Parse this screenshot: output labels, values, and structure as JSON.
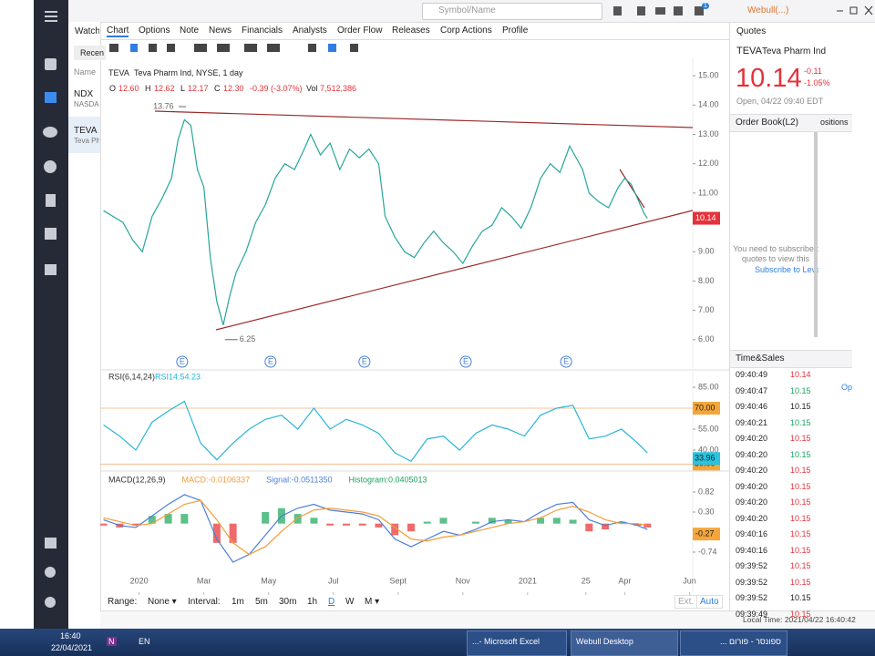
{
  "top_bar": {
    "search": "Symbol/Name",
    "account": "Webull(...)",
    "badge": "1"
  },
  "watchlist": {
    "tab": "Watchli",
    "filter": "Recen",
    "column": "Name",
    "items": [
      {
        "symbol": "NDX",
        "name": "NASDAQ"
      },
      {
        "symbol": "TEVA",
        "name": "Teva Ph"
      }
    ]
  },
  "tabs": [
    "Chart",
    "Options",
    "Note",
    "News",
    "Financials",
    "Analysts",
    "Order Flow",
    "Releases",
    "Corp Actions",
    "Profile"
  ],
  "legend": {
    "symbol": "TEVA",
    "description": "Teva Pharm Ind, NYSE, 1 day",
    "ohlc": [
      {
        "label": "O",
        "value": "12.60"
      },
      {
        "label": "H",
        "value": "12.62"
      },
      {
        "label": "L",
        "value": "12.17"
      },
      {
        "label": "C",
        "value": "12.30"
      }
    ],
    "change": "-0.39 (-3.07%)",
    "volume_label": "Vol",
    "volume": "7,512,386"
  },
  "price_chart": {
    "type": "line",
    "color": "#26a69a",
    "x": [
      -1.1,
      -0.8,
      -0.5,
      -0.2,
      0.1,
      0.4,
      0.7,
      1.0,
      1.2,
      1.4,
      1.6,
      1.8,
      2.0,
      2.2,
      2.4,
      2.6,
      2.8,
      3.0,
      3.3,
      3.6,
      3.9,
      4.2,
      4.5,
      4.8,
      5.1,
      5.3,
      5.6,
      5.9,
      6.2,
      6.5,
      6.8,
      7.1,
      7.4,
      7.6,
      7.9,
      8.2,
      8.5,
      8.8,
      9.1,
      9.4,
      9.7,
      10.0,
      10.3,
      10.6,
      10.9,
      11.2,
      11.5,
      11.8,
      12.1,
      12.4,
      12.7,
      13.0,
      13.3,
      13.5,
      13.7,
      13.9,
      14.2,
      14.5,
      14.8,
      15.0,
      15.2,
      15.4,
      15.6,
      15.7
    ],
    "values": [
      10.4,
      10.2,
      10.0,
      9.4,
      9.0,
      10.2,
      10.8,
      11.5,
      12.8,
      13.5,
      13.3,
      11.8,
      11.2,
      8.8,
      7.3,
      6.5,
      7.5,
      8.3,
      9.0,
      10.0,
      10.6,
      11.5,
      12.0,
      11.8,
      12.5,
      13.0,
      12.3,
      12.7,
      11.8,
      12.5,
      12.2,
      12.5,
      12.0,
      10.2,
      9.5,
      9.0,
      8.8,
      9.3,
      9.7,
      9.3,
      9.0,
      8.6,
      9.2,
      9.7,
      9.9,
      10.5,
      10.2,
      9.8,
      10.5,
      11.5,
      12.0,
      11.7,
      12.6,
      12.2,
      11.8,
      11.0,
      10.7,
      10.5,
      11.2,
      11.5,
      11.3,
      10.8,
      10.3,
      10.14
    ],
    "xlim": [
      -1.2,
      17.1
    ],
    "ylim": [
      5.0,
      15.47
    ],
    "xticks": [
      {
        "value": 0,
        "label": "2020"
      },
      {
        "value": 2,
        "label": "Mar"
      },
      {
        "value": 4,
        "label": "May"
      },
      {
        "value": 6,
        "label": "Jul"
      },
      {
        "value": 8,
        "label": "Sept"
      },
      {
        "value": 10,
        "label": "Nov"
      },
      {
        "value": 12,
        "label": "2021"
      },
      {
        "value": 13.8,
        "label": "25"
      },
      {
        "value": 15,
        "label": "Apr"
      },
      {
        "value": 17,
        "label": "Jun"
      }
    ],
    "yticks": [
      {
        "value": 15,
        "label": "15.00"
      },
      {
        "value": 14,
        "label": "14.00"
      },
      {
        "value": 13,
        "label": "13.00"
      },
      {
        "value": 12,
        "label": "12.00"
      },
      {
        "value": 11,
        "label": "11.00"
      },
      {
        "value": 10,
        "label": "10.00"
      },
      {
        "value": 9,
        "label": "9.00"
      },
      {
        "value": 8,
        "label": "8.00"
      },
      {
        "value": 7,
        "label": "7.00"
      },
      {
        "value": 6,
        "label": "6.00"
      }
    ],
    "last_price": 10.14,
    "high_marker": {
      "x": 1.45,
      "value": 13.76
    },
    "low_marker": {
      "x": 2.65,
      "value": 6.25
    },
    "events": [
      {
        "x": 1.33,
        "label": "E"
      },
      {
        "x": 4.06,
        "label": "E"
      },
      {
        "x": 6.96,
        "label": "E"
      },
      {
        "x": 10.09,
        "label": "E"
      },
      {
        "x": 13.19,
        "label": "E"
      }
    ]
  },
  "rsi": {
    "title": "RSI(6,14,24)",
    "reading": "RSI14:54.23",
    "color": "#29b6d6",
    "x": [
      -1.1,
      -0.6,
      -0.1,
      0.4,
      0.9,
      1.4,
      1.9,
      2.4,
      2.9,
      3.4,
      3.9,
      4.4,
      4.9,
      5.4,
      5.9,
      6.4,
      6.9,
      7.4,
      7.9,
      8.4,
      8.9,
      9.4,
      9.9,
      10.4,
      10.9,
      11.4,
      11.9,
      12.4,
      12.9,
      13.4,
      13.9,
      14.4,
      14.9,
      15.4,
      15.7
    ],
    "values": [
      58,
      50,
      40,
      60,
      68,
      75,
      45,
      33,
      45,
      55,
      62,
      65,
      55,
      70,
      55,
      62,
      58,
      52,
      38,
      32,
      48,
      50,
      40,
      52,
      58,
      55,
      50,
      65,
      70,
      72,
      48,
      50,
      55,
      45,
      38
    ],
    "ylim": [
      26.3,
      96.1
    ],
    "yticks": [
      {
        "value": 85,
        "label": "85.00"
      },
      {
        "value": 55,
        "label": "55.00"
      },
      {
        "value": 40,
        "label": "40.00"
      }
    ],
    "levels": [
      {
        "value": 70,
        "label": "70.00"
      },
      {
        "value": 30,
        "label": "30.00"
      }
    ],
    "last": 33.96
  },
  "macd": {
    "title": "MACD(12,26,9)",
    "macd_reading": "MACD:-0.0106337",
    "signal_reading": "Signal:-0.0511350",
    "histogram_reading": "Histogram:0.0405013",
    "x": [
      -1.1,
      -0.6,
      -0.1,
      0.4,
      0.9,
      1.4,
      1.9,
      2.4,
      2.9,
      3.4,
      3.9,
      4.4,
      4.9,
      5.4,
      5.9,
      6.4,
      6.9,
      7.4,
      7.9,
      8.4,
      8.9,
      9.4,
      9.9,
      10.4,
      10.9,
      11.4,
      11.9,
      12.4,
      12.9,
      13.4,
      13.9,
      14.4,
      14.9,
      15.4,
      15.7
    ],
    "series": [
      {
        "name": "MACD",
        "color": "#4a7fd8",
        "values": [
          0.1,
          -0.05,
          -0.1,
          0.2,
          0.5,
          0.75,
          0.6,
          -0.4,
          -1.0,
          -0.8,
          -0.3,
          0.2,
          0.4,
          0.5,
          0.35,
          0.3,
          0.25,
          0.1,
          -0.4,
          -0.6,
          -0.4,
          -0.2,
          -0.3,
          -0.15,
          0.05,
          0.1,
          0.05,
          0.3,
          0.5,
          0.55,
          0.1,
          -0.05,
          0.05,
          -0.05,
          -0.15
        ]
      },
      {
        "name": "Signal",
        "color": "#f39c38",
        "values": [
          0.15,
          0.05,
          -0.05,
          0.0,
          0.25,
          0.5,
          0.6,
          0.1,
          -0.5,
          -0.8,
          -0.6,
          -0.2,
          0.15,
          0.35,
          0.4,
          0.35,
          0.3,
          0.2,
          -0.1,
          -0.4,
          -0.45,
          -0.35,
          -0.3,
          -0.2,
          -0.1,
          0.0,
          0.05,
          0.15,
          0.35,
          0.45,
          0.3,
          0.1,
          0.0,
          0.0,
          -0.05
        ]
      }
    ],
    "histogram": [
      -0.05,
      -0.1,
      -0.05,
      0.2,
      0.25,
      0.25,
      0,
      -0.5,
      -0.5,
      0,
      0.3,
      0.4,
      0.25,
      0.15,
      -0.05,
      -0.05,
      -0.05,
      -0.1,
      -0.3,
      -0.2,
      0.05,
      0.15,
      0,
      0.05,
      0.15,
      0.1,
      0,
      0.15,
      0.15,
      0.1,
      -0.2,
      -0.15,
      0.05,
      -0.05,
      -0.1
    ],
    "ylim": [
      -1.78,
      1.34
    ],
    "yticks": [
      0.82,
      {
        "value": 0.3,
        "label": "0.30"
      },
      -0.74
    ],
    "last": -0.27
  },
  "range_bar": {
    "range_label": "Range:",
    "range": "None ▾",
    "interval_label": "Interval:",
    "intervals": [
      "1m",
      "5m",
      "30m",
      "1h",
      "D",
      "W",
      "M ▾"
    ],
    "active_index": 4,
    "ext": "Ext.",
    "auto": "Auto"
  },
  "quotes": {
    "title": "Quotes",
    "symbol": "TEVA",
    "name": "Teva Pharm Ind",
    "price": "10.14",
    "change": "-0.11",
    "change_pct": "-1.05%",
    "time": "Open, 04/22 09:40 EDT"
  },
  "order_book": {
    "title": "Order Book(L2)",
    "tab2": "ositions",
    "message": [
      "You need to subscribe t",
      "quotes to view this"
    ],
    "link": "Subscribe to Level"
  },
  "time_sales": {
    "title": "Time&Sales",
    "rows": [
      {
        "time": "09:40:49",
        "price": "10.14",
        "color": "#e5323b"
      },
      {
        "time": "09:40:47",
        "price": "10.15",
        "color": "#1aa260"
      },
      {
        "time": "09:40:46",
        "price": "10.15",
        "color": "#222"
      },
      {
        "time": "09:40:21",
        "price": "10.15",
        "color": "#1aa260"
      },
      {
        "time": "09:40:20",
        "price": "10.15",
        "color": "#e5323b"
      },
      {
        "time": "09:40:20",
        "price": "10.15",
        "color": "#1aa260"
      },
      {
        "time": "09:40:20",
        "price": "10.15",
        "color": "#e5323b"
      },
      {
        "time": "09:40:20",
        "price": "10.15",
        "color": "#e5323b"
      },
      {
        "time": "09:40:20",
        "price": "10.15",
        "color": "#e5323b"
      },
      {
        "time": "09:40:20",
        "price": "10.15",
        "color": "#e5323b"
      },
      {
        "time": "09:40:16",
        "price": "10.15",
        "color": "#e5323b"
      },
      {
        "time": "09:40:16",
        "price": "10.15",
        "color": "#e5323b"
      },
      {
        "time": "09:39:52",
        "price": "10.15",
        "color": "#e5323b"
      },
      {
        "time": "09:39:52",
        "price": "10.15",
        "color": "#e5323b"
      },
      {
        "time": "09:39:52",
        "price": "10.15",
        "color": "#222"
      },
      {
        "time": "09:39:49",
        "price": "10.15",
        "color": "#e5323b"
      }
    ]
  },
  "side_link": "Op",
  "status": "Local Time: 2021/04/22 16:40:42",
  "taskbar": {
    "time": "16:40",
    "date": "22/04/2021",
    "app_badge": "N",
    "lang": "EN",
    "tasks": [
      "...- Microsoft Excel",
      "Webull Desktop",
      "... ספונסר - פורום"
    ]
  }
}
